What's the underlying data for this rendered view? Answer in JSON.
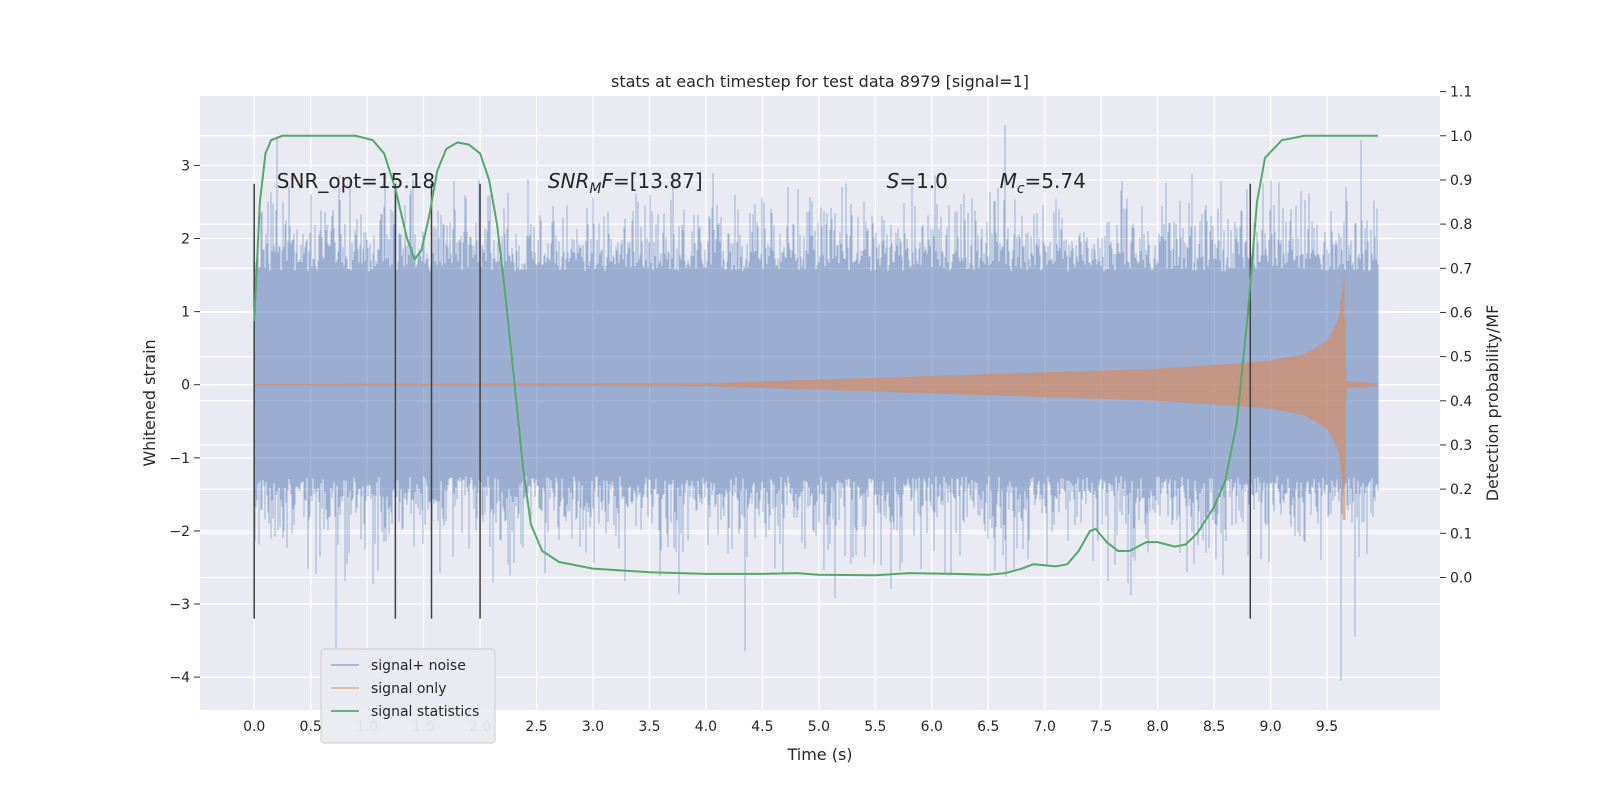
{
  "chart_data": {
    "type": "line",
    "title": "stats at each timestep for test data 8979 [signal=1]",
    "xlabel": "Time (s)",
    "ylabel": "Whitened strain",
    "y2label": "Detection probability/MF",
    "xlim": [
      -0.48,
      10.5
    ],
    "ylim": [
      -4.45,
      3.95
    ],
    "y2lim": [
      -0.3,
      1.09
    ],
    "xticks": [
      "0.0",
      "0.5",
      "1.0",
      "1.5",
      "2.0",
      "2.5",
      "3.0",
      "3.5",
      "4.0",
      "4.5",
      "5.0",
      "5.5",
      "6.0",
      "6.5",
      "7.0",
      "7.5",
      "8.0",
      "8.5",
      "9.0",
      "9.5"
    ],
    "yticks": [
      "-4",
      "-3",
      "-2",
      "-1",
      "0",
      "1",
      "2",
      "3"
    ],
    "y2ticks": [
      "0.0",
      "0.1",
      "0.2",
      "0.3",
      "0.4",
      "0.5",
      "0.6",
      "0.7",
      "0.8",
      "0.9",
      "1.0",
      "1.1"
    ],
    "grid": true,
    "legend_position": "lower-left",
    "annotations": [
      {
        "text": "SNR_opt=15.18",
        "x": 0.2,
        "y": 2.8
      },
      {
        "text": "SNR_MF=[13.87]",
        "x": 2.6,
        "y": 2.8,
        "parts": [
          [
            "SNR",
            "italic-normal"
          ],
          [
            "M",
            "italic-sub"
          ],
          [
            "F",
            "italic-normal"
          ],
          [
            "=[13.87]",
            "normal"
          ]
        ]
      },
      {
        "text": "S=1.0",
        "x": 5.6,
        "y": 2.8,
        "parts": [
          [
            "S",
            "italic-normal"
          ],
          [
            "=1.0",
            "normal"
          ]
        ]
      },
      {
        "text": "M_c=5.74",
        "x": 6.6,
        "y": 2.8,
        "parts": [
          [
            "M",
            "italic-normal"
          ],
          [
            "c",
            "italic-sub"
          ],
          [
            "=5.74",
            "normal"
          ]
        ]
      }
    ],
    "vertical_markers": [
      0.0,
      1.25,
      1.57,
      2.0,
      8.82
    ],
    "vertical_marker_range": [
      -3.2,
      2.75
    ],
    "series": [
      {
        "name": "signal+ noise",
        "color": "#4c72b0",
        "description_style": "dense noise trace",
        "time_range": [
          0.0,
          9.95
        ],
        "core_band": [
          -1.25,
          1.55
        ],
        "typical_peak": 2.3,
        "extreme_values": [
          [
            0.2,
            3.4
          ],
          [
            0.72,
            -3.6
          ],
          [
            4.35,
            -3.65
          ],
          [
            6.65,
            3.55
          ],
          [
            9.62,
            -4.05
          ],
          [
            9.75,
            -3.45
          ],
          [
            9.8,
            3.35
          ]
        ]
      },
      {
        "name": "signal only",
        "color": "#dd8452",
        "description_style": "chirp waveform envelope",
        "envelope": [
          [
            0.0,
            0.01
          ],
          [
            4.0,
            0.02
          ],
          [
            5.0,
            0.07
          ],
          [
            6.0,
            0.12
          ],
          [
            7.0,
            0.17
          ],
          [
            8.0,
            0.22
          ],
          [
            8.5,
            0.27
          ],
          [
            9.0,
            0.33
          ],
          [
            9.3,
            0.42
          ],
          [
            9.5,
            0.6
          ],
          [
            9.6,
            0.9
          ],
          [
            9.65,
            1.5
          ],
          [
            9.67,
            0.05
          ],
          [
            9.95,
            0.02
          ]
        ],
        "negative_peak": -1.85
      },
      {
        "name": "signal statistics",
        "color": "#55a868",
        "axis": "right",
        "points": [
          [
            0.0,
            0.58
          ],
          [
            0.05,
            0.85
          ],
          [
            0.1,
            0.96
          ],
          [
            0.15,
            0.99
          ],
          [
            0.25,
            1.0
          ],
          [
            0.5,
            1.0
          ],
          [
            0.9,
            1.0
          ],
          [
            1.05,
            0.99
          ],
          [
            1.15,
            0.96
          ],
          [
            1.25,
            0.88
          ],
          [
            1.35,
            0.77
          ],
          [
            1.42,
            0.72
          ],
          [
            1.48,
            0.74
          ],
          [
            1.55,
            0.82
          ],
          [
            1.62,
            0.92
          ],
          [
            1.7,
            0.97
          ],
          [
            1.8,
            0.985
          ],
          [
            1.9,
            0.98
          ],
          [
            2.0,
            0.96
          ],
          [
            2.08,
            0.9
          ],
          [
            2.15,
            0.8
          ],
          [
            2.22,
            0.65
          ],
          [
            2.3,
            0.45
          ],
          [
            2.38,
            0.25
          ],
          [
            2.45,
            0.12
          ],
          [
            2.55,
            0.06
          ],
          [
            2.7,
            0.035
          ],
          [
            3.0,
            0.02
          ],
          [
            3.5,
            0.012
          ],
          [
            4.0,
            0.008
          ],
          [
            4.5,
            0.008
          ],
          [
            4.8,
            0.01
          ],
          [
            5.0,
            0.006
          ],
          [
            5.5,
            0.005
          ],
          [
            5.8,
            0.01
          ],
          [
            6.2,
            0.008
          ],
          [
            6.5,
            0.006
          ],
          [
            6.65,
            0.01
          ],
          [
            6.8,
            0.02
          ],
          [
            6.9,
            0.03
          ],
          [
            7.1,
            0.025
          ],
          [
            7.2,
            0.03
          ],
          [
            7.3,
            0.06
          ],
          [
            7.4,
            0.105
          ],
          [
            7.45,
            0.11
          ],
          [
            7.55,
            0.08
          ],
          [
            7.65,
            0.06
          ],
          [
            7.75,
            0.06
          ],
          [
            7.9,
            0.08
          ],
          [
            8.0,
            0.08
          ],
          [
            8.15,
            0.07
          ],
          [
            8.25,
            0.075
          ],
          [
            8.35,
            0.1
          ],
          [
            8.5,
            0.16
          ],
          [
            8.6,
            0.22
          ],
          [
            8.7,
            0.35
          ],
          [
            8.8,
            0.6
          ],
          [
            8.88,
            0.85
          ],
          [
            8.95,
            0.95
          ],
          [
            9.1,
            0.99
          ],
          [
            9.3,
            1.0
          ],
          [
            9.6,
            1.0
          ],
          [
            9.95,
            1.0
          ]
        ]
      }
    ]
  }
}
